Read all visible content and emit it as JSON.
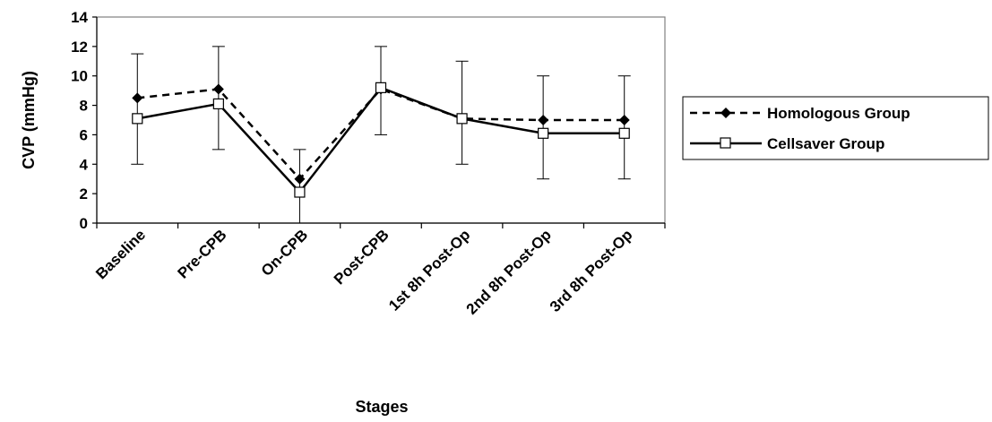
{
  "chart_data": {
    "type": "line",
    "title": "",
    "xlabel": "Stages",
    "ylabel": "CVP (mmHg)",
    "ylim": [
      0,
      14
    ],
    "yticks": [
      0,
      2,
      4,
      6,
      8,
      10,
      12,
      14
    ],
    "categories": [
      "Baseline",
      "Pre-CPB",
      "On-CPB",
      "Post-CPB",
      "1st 8h Post-Op",
      "2nd 8h Post-Op",
      "3rd 8h Post-Op"
    ],
    "series": [
      {
        "name": "Homologous Group",
        "style": "dashed",
        "marker": "diamond-filled",
        "values": [
          8.5,
          9.1,
          3.0,
          9.1,
          7.1,
          7.0,
          7.0
        ],
        "err_low": [
          4.0,
          5.0,
          0.0,
          6.0,
          4.0,
          3.0,
          3.0
        ],
        "err_high": [
          11.5,
          12.0,
          5.0,
          12.0,
          11.0,
          10.0,
          10.0
        ]
      },
      {
        "name": "Cellsaver Group",
        "style": "solid",
        "marker": "square-open",
        "values": [
          7.1,
          8.1,
          2.1,
          9.2,
          7.1,
          6.1,
          6.1
        ]
      }
    ],
    "grid": false,
    "legend_position": "right",
    "colors": {
      "line": "#000000",
      "axis": "#000000",
      "plot_border": "#808080",
      "background": "#ffffff"
    }
  }
}
